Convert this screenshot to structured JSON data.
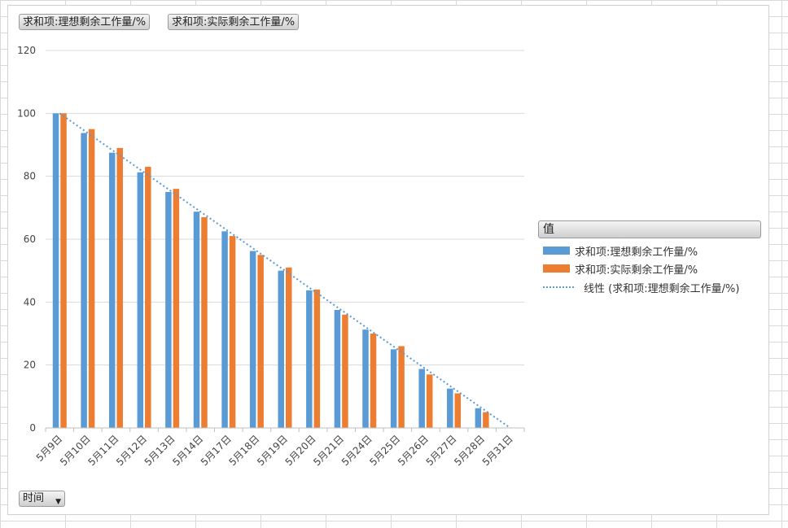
{
  "field_buttons": {
    "ideal": "求和项:理想剩余工作量/%",
    "actual": "求和项:实际剩余工作量/%"
  },
  "legend": {
    "title": "值",
    "items": [
      {
        "label": "求和项:理想剩余工作量/%",
        "color": "#5b9bd5",
        "kind": "bar"
      },
      {
        "label": "求和项:实际剩余工作量/%",
        "color": "#ed7d31",
        "kind": "bar"
      },
      {
        "label": "线性 (求和项:理想剩余工作量/%)",
        "color": "#5b9bd5",
        "kind": "dotted-line"
      }
    ]
  },
  "axis_field_button": {
    "label": "时间",
    "icon": "dropdown-arrow-icon"
  },
  "chart_data": {
    "type": "bar",
    "categories": [
      "5月9日",
      "5月10日",
      "5月11日",
      "5月12日",
      "5月13日",
      "5月14日",
      "5月17日",
      "5月18日",
      "5月19日",
      "5月20日",
      "5月21日",
      "5月24日",
      "5月25日",
      "5月26日",
      "5月27日",
      "5月28日",
      "5月31日"
    ],
    "series": [
      {
        "name": "求和项:理想剩余工作量/%",
        "color": "#5b9bd5",
        "values": [
          100,
          93.75,
          87.5,
          81.25,
          75,
          68.75,
          62.5,
          56.25,
          50,
          43.75,
          37.5,
          31.25,
          25,
          18.75,
          12.5,
          6.25,
          0
        ]
      },
      {
        "name": "求和项:实际剩余工作量/%",
        "color": "#ed7d31",
        "values": [
          100,
          95,
          89,
          83,
          76,
          67,
          61,
          55,
          51,
          44,
          36,
          30,
          26,
          17,
          11,
          5,
          0
        ]
      }
    ],
    "trendline": {
      "name": "线性 (求和项:理想剩余工作量/%)",
      "series": 0,
      "type": "linear",
      "color": "#5b9bd5"
    },
    "ylim": [
      0,
      120
    ],
    "yticks": [
      0,
      20,
      40,
      60,
      80,
      100,
      120
    ],
    "grid": true,
    "legend_position": "right"
  }
}
